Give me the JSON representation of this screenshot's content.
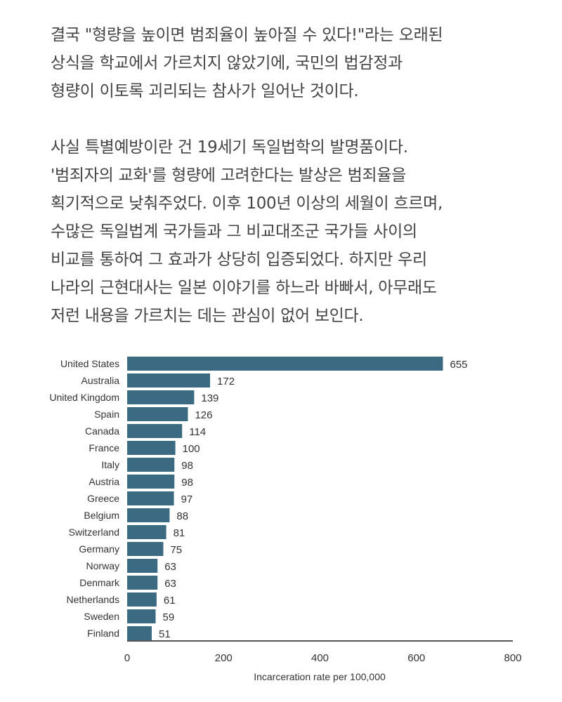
{
  "text": {
    "paragraph1": [
      "결국 \"형량을 높이면 범죄율이 높아질 수 있다!\"라는 오래된",
      "상식을 학교에서 가르치지 않았기에, 국민의 법감정과",
      "형량이 이토록 괴리되는 참사가 일어난 것이다."
    ],
    "paragraph2": [
      "사실 특별예방이란 건 19세기 독일법학의 발명품이다.",
      "'범죄자의 교화'를 형량에 고려한다는 발상은 범죄율을",
      "획기적으로 낮춰주었다. 이후 100년 이상의 세월이 흐르며,",
      "수많은 독일법계 국가들과 그 비교대조군 국가들 사이의",
      "비교를 통하여 그 효과가 상당히 입증되었다. 하지만 우리",
      "나라의 근현대사는 일본 이야기를 하느라 바빠서, 아무래도",
      "저런 내용을 가르치는 데는 관심이 없어 보인다."
    ]
  },
  "chart_data": {
    "type": "bar",
    "orientation": "horizontal",
    "categories": [
      "United States",
      "Australia",
      "United Kingdom",
      "Spain",
      "Canada",
      "France",
      "Italy",
      "Austria",
      "Greece",
      "Belgium",
      "Switzerland",
      "Germany",
      "Norway",
      "Denmark",
      "Netherlands",
      "Sweden",
      "Finland"
    ],
    "values": [
      655,
      172,
      139,
      126,
      114,
      100,
      98,
      98,
      97,
      88,
      81,
      75,
      63,
      63,
      61,
      59,
      51
    ],
    "xlabel": "Incarceration rate per 100,000",
    "ylabel": "",
    "xlim": [
      0,
      800
    ],
    "xticks": [
      "0",
      "200",
      "400",
      "600",
      "800"
    ],
    "grid": false,
    "data_labels": true,
    "bar_color": "#3a6b80"
  }
}
